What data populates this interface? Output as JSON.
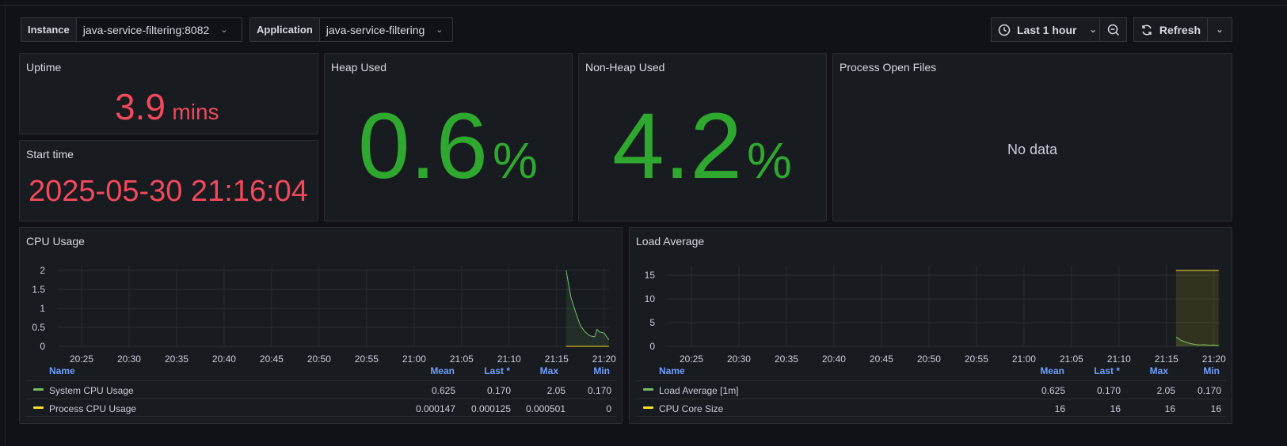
{
  "variables": [
    {
      "label": "Instance",
      "value": "java-service-filtering:8082"
    },
    {
      "label": "Application",
      "value": "java-service-filtering"
    }
  ],
  "toolbar": {
    "time_range": "Last 1 hour",
    "refresh_label": "Refresh"
  },
  "panels": {
    "uptime": {
      "title": "Uptime",
      "value": "3.9",
      "unit": "mins"
    },
    "start_time": {
      "title": "Start time",
      "value": "2025-05-30 21:16:04"
    },
    "heap": {
      "title": "Heap Used",
      "value": "0.6",
      "unit": "%"
    },
    "nonheap": {
      "title": "Non-Heap Used",
      "value": "4.2",
      "unit": "%"
    },
    "open_files": {
      "title": "Process Open Files",
      "no_data": "No data"
    },
    "cpu": {
      "title": "CPU Usage"
    },
    "load": {
      "title": "Load Average"
    }
  },
  "legend_headers": {
    "name": "Name",
    "mean": "Mean",
    "last": "Last *",
    "max": "Max",
    "min": "Min"
  },
  "colors": {
    "green_series": "#73bf69",
    "yellow_series": "#fade2a",
    "red_stat": "#f2495c",
    "green_stat": "#2fa82f"
  },
  "chart_data": [
    {
      "type": "line",
      "title": "CPU Usage",
      "x_ticks": [
        "20:25",
        "20:30",
        "20:35",
        "20:40",
        "20:45",
        "20:50",
        "20:55",
        "21:00",
        "21:05",
        "21:10",
        "21:15",
        "21:20"
      ],
      "y_ticks": [
        "0",
        "0.5",
        "1",
        "1.5",
        "2"
      ],
      "ylim": [
        0,
        2
      ],
      "series": [
        {
          "name": "System CPU Usage",
          "color": "#73bf69",
          "x": [
            "21:16:00",
            "21:16:30",
            "21:17:00",
            "21:17:30",
            "21:18:00",
            "21:18:30",
            "21:19:00",
            "21:19:15",
            "21:19:30",
            "21:20:00",
            "21:20:30"
          ],
          "values": [
            2.0,
            1.3,
            0.9,
            0.55,
            0.38,
            0.28,
            0.25,
            0.45,
            0.38,
            0.35,
            0.17
          ],
          "mean": "0.625",
          "last": "0.170",
          "max": "2.05",
          "min": "0.170"
        },
        {
          "name": "Process CPU Usage",
          "color": "#fade2a",
          "x": [
            "21:16:00",
            "21:20:30"
          ],
          "values": [
            0.0005,
            0.000125
          ],
          "mean": "0.000147",
          "last": "0.000125",
          "max": "0.000501",
          "min": "0"
        }
      ]
    },
    {
      "type": "line",
      "title": "Load Average",
      "x_ticks": [
        "20:25",
        "20:30",
        "20:35",
        "20:40",
        "20:45",
        "20:50",
        "20:55",
        "21:00",
        "21:05",
        "21:10",
        "21:15",
        "21:20"
      ],
      "y_ticks": [
        "0",
        "5",
        "10",
        "15"
      ],
      "ylim": [
        0,
        16
      ],
      "series": [
        {
          "name": "Load Average [1m]",
          "color": "#73bf69",
          "x": [
            "21:16:00",
            "21:16:30",
            "21:17:00",
            "21:17:30",
            "21:18:00",
            "21:18:30",
            "21:19:00",
            "21:19:30",
            "21:20:00",
            "21:20:30"
          ],
          "values": [
            2.0,
            1.3,
            0.9,
            0.6,
            0.4,
            0.3,
            0.35,
            0.25,
            0.3,
            0.17
          ],
          "mean": "0.625",
          "last": "0.170",
          "max": "2.05",
          "min": "0.170"
        },
        {
          "name": "CPU Core Size",
          "color": "#fade2a",
          "x": [
            "21:16:00",
            "21:20:30"
          ],
          "values": [
            16,
            16
          ],
          "mean": "16",
          "last": "16",
          "max": "16",
          "min": "16"
        }
      ]
    }
  ]
}
